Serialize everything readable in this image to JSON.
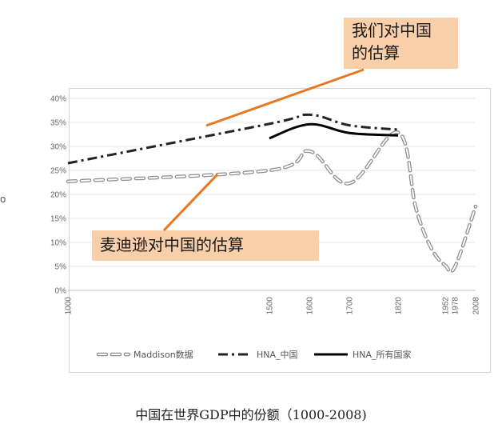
{
  "caption": "中国在世界GDP中的份额（1000-2008)",
  "left_mark": "o",
  "callouts": {
    "hna": [
      "我们对中国",
      "的估算"
    ],
    "maddison": "麦迪逊对中国的估算"
  },
  "colors": {
    "callout_fill": "#f9cfa9",
    "arrow": "#e87722",
    "maddison": "#8c8c8c",
    "hna_china": "#222222",
    "hna_all": "#000000"
  },
  "chart_data": {
    "type": "line",
    "xlabel": "",
    "ylabel": "",
    "x_ticks": [
      "1000",
      "1500",
      "1600",
      "1700",
      "1820",
      "1952",
      "1978",
      "2008"
    ],
    "y_ticks": [
      "0%",
      "5%",
      "10%",
      "15%",
      "20%",
      "25%",
      "30%",
      "35%",
      "40%"
    ],
    "ylim": [
      0,
      40
    ],
    "grid": true,
    "legend_position": "bottom",
    "series": [
      {
        "name": "Maddison数据",
        "style": "dashed-outline",
        "points": [
          [
            1000,
            22.7
          ],
          [
            1500,
            25.0
          ],
          [
            1600,
            29.0
          ],
          [
            1700,
            22.3
          ],
          [
            1820,
            32.9
          ],
          [
            1870,
            17.1
          ],
          [
            1913,
            8.8
          ],
          [
            1952,
            5.2
          ],
          [
            1978,
            4.9
          ],
          [
            2008,
            17.5
          ]
        ]
      },
      {
        "name": "HNA_中国",
        "style": "dash-dot",
        "points": [
          [
            1000,
            26.5
          ],
          [
            1500,
            34.7
          ],
          [
            1600,
            36.6
          ],
          [
            1700,
            34.4
          ],
          [
            1820,
            33.5
          ]
        ]
      },
      {
        "name": "HNA_所有国家",
        "style": "solid",
        "points": [
          [
            1500,
            31.7
          ],
          [
            1600,
            34.6
          ],
          [
            1700,
            32.8
          ],
          [
            1820,
            32.3
          ]
        ]
      }
    ]
  }
}
